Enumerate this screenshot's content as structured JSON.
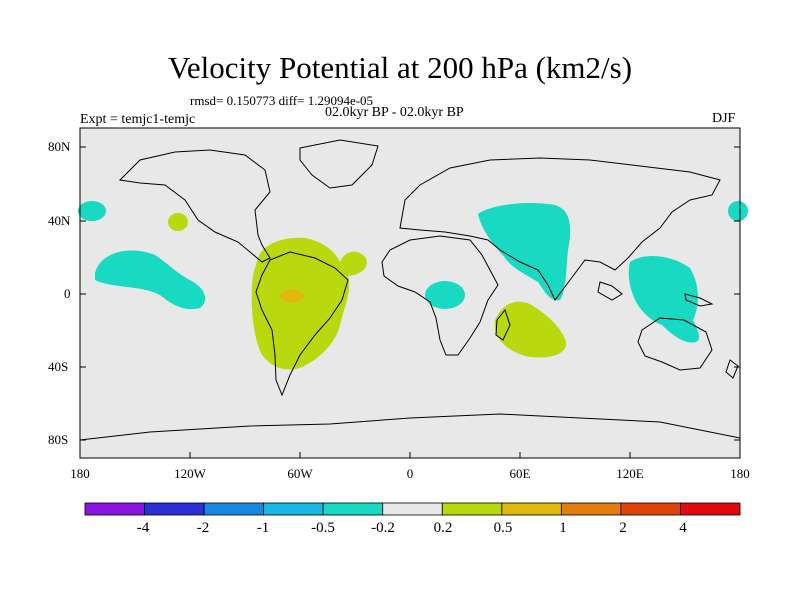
{
  "header": {
    "title": "Velocity Potential at 200 hPa (km2/s)",
    "stats": "rmsd= 0.150773 diff= 1.29094e-05",
    "period": "02.0kyr BP - 02.0kyr BP",
    "experiment": "Expt = temjc1-temjc",
    "season": "DJF"
  },
  "map": {
    "lat_labels": [
      "80N",
      "40N",
      "0",
      "40S",
      "80S"
    ],
    "lon_labels": [
      "180",
      "120W",
      "60W",
      "0",
      "60E",
      "120E",
      "180"
    ],
    "background_color": "#e8e8e8"
  },
  "colorbar": {
    "labels": [
      "-4",
      "-2",
      "-1",
      "-0.5",
      "-0.2",
      "0.2",
      "0.5",
      "1",
      "2",
      "4"
    ],
    "colors": [
      "#8a16e0",
      "#2b2fd8",
      "#1a87e0",
      "#18b8e6",
      "#18d9c1",
      "#e8e8e8",
      "#b9d90e",
      "#e0b90e",
      "#e07c10",
      "#e0420c",
      "#e00c0c"
    ]
  }
}
